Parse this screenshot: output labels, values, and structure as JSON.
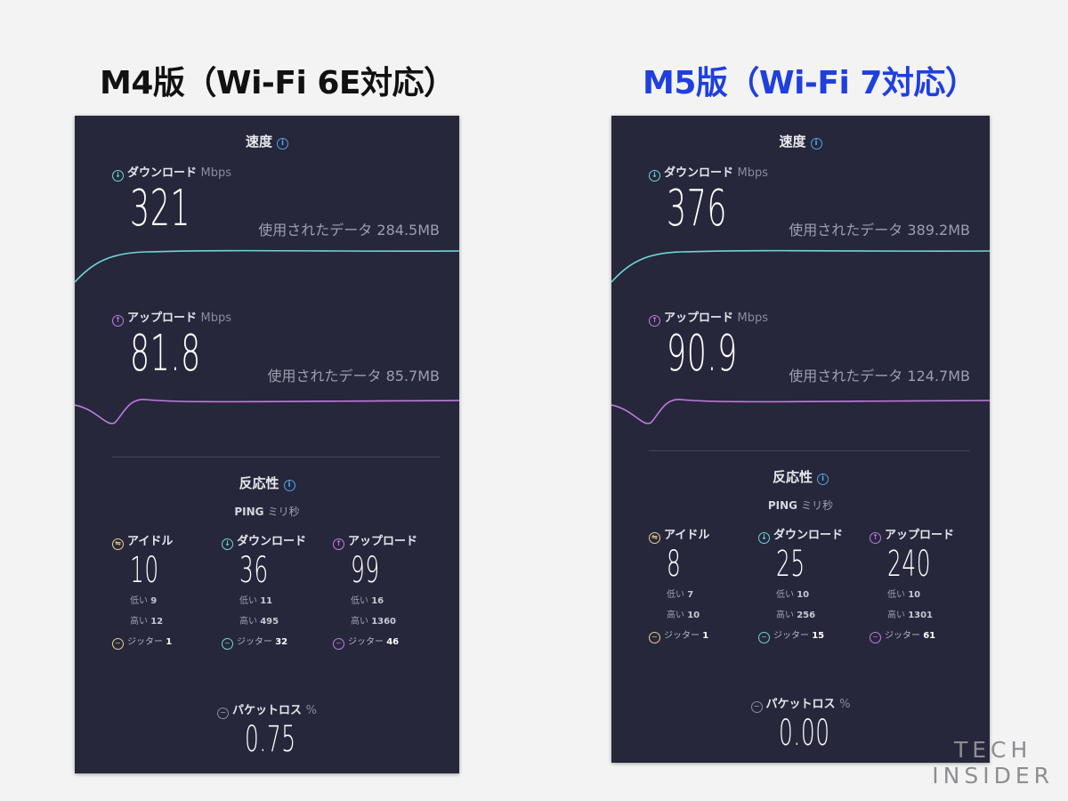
{
  "captions": [
    "M4版（Wi-Fi 6E対応）",
    "M5版（Wi-Fi 7対応）"
  ],
  "colors": {
    "download": "#6fd6d4",
    "upload": "#c27be0",
    "idle": "#e8d28a",
    "panel_bg": "#26273b",
    "caption_right": "#1f3fe0"
  },
  "panels": [
    {
      "speed": {
        "title": "速度",
        "info_icon": "i"
      },
      "download": {
        "label": "ダウンロード",
        "unit": "Mbps",
        "value": "321",
        "used_label": "使用されたデータ",
        "used": "284.5MB"
      },
      "upload": {
        "label": "アップロード",
        "unit": "Mbps",
        "value": "81.8",
        "used_label": "使用されたデータ",
        "used": "85.7MB"
      },
      "responsiveness": {
        "title": "反応性",
        "info_icon": "i",
        "ping": "PING",
        "ping_unit": "ミリ秒"
      },
      "cols": [
        {
          "label": "アイドル",
          "value": "10",
          "low_label": "低い",
          "low": "9",
          "high_label": "高い",
          "high": "12",
          "jitter_label": "ジッター",
          "jitter": "1"
        },
        {
          "label": "ダウンロード",
          "value": "36",
          "low_label": "低い",
          "low": "11",
          "high_label": "高い",
          "high": "495",
          "jitter_label": "ジッター",
          "jitter": "32"
        },
        {
          "label": "アップロード",
          "value": "99",
          "low_label": "低い",
          "low": "16",
          "high_label": "高い",
          "high": "1360",
          "jitter_label": "ジッター",
          "jitter": "46"
        }
      ],
      "packet_loss": {
        "label": "パケットロス",
        "unit": "%",
        "value": "0.75"
      }
    },
    {
      "speed": {
        "title": "速度",
        "info_icon": "i"
      },
      "download": {
        "label": "ダウンロード",
        "unit": "Mbps",
        "value": "376",
        "used_label": "使用されたデータ",
        "used": "389.2MB"
      },
      "upload": {
        "label": "アップロード",
        "unit": "Mbps",
        "value": "90.9",
        "used_label": "使用されたデータ",
        "used": "124.7MB"
      },
      "responsiveness": {
        "title": "反応性",
        "info_icon": "i",
        "ping": "PING",
        "ping_unit": "ミリ秒"
      },
      "cols": [
        {
          "label": "アイドル",
          "value": "8",
          "low_label": "低い",
          "low": "7",
          "high_label": "高い",
          "high": "10",
          "jitter_label": "ジッター",
          "jitter": "1"
        },
        {
          "label": "ダウンロード",
          "value": "25",
          "low_label": "低い",
          "low": "10",
          "high_label": "高い",
          "high": "256",
          "jitter_label": "ジッター",
          "jitter": "15"
        },
        {
          "label": "アップロード",
          "value": "240",
          "low_label": "低い",
          "low": "10",
          "high_label": "高い",
          "high": "1301",
          "jitter_label": "ジッター",
          "jitter": "61"
        }
      ],
      "packet_loss": {
        "label": "パケットロス",
        "unit": "%",
        "value": "0.00"
      }
    }
  ],
  "logo": {
    "line1": "TECH",
    "line2": "INSIDER"
  }
}
